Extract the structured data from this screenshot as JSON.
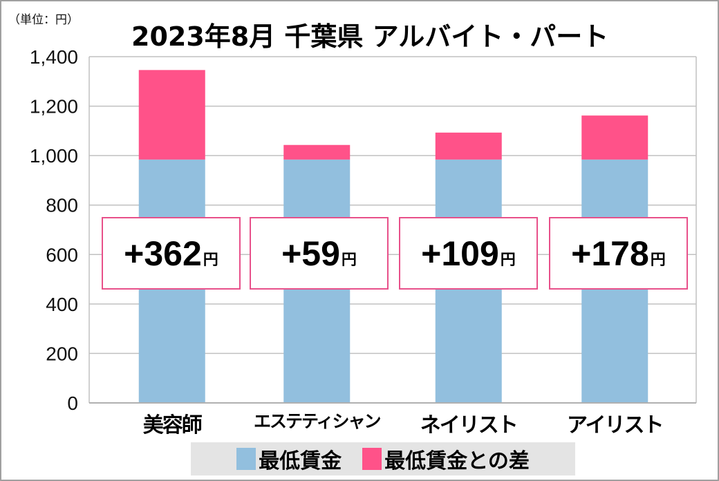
{
  "chart_data": {
    "type": "bar",
    "stacked": true,
    "title": "2023年8月 千葉県 アルバイト・パート",
    "unit_note": "（単位：円）",
    "categories": [
      "美容師",
      "エステティシャン",
      "ネイリスト",
      "アイリスト"
    ],
    "series": [
      {
        "name": "最低賃金",
        "values": [
          984,
          984,
          984,
          984
        ],
        "color": "#92bfde"
      },
      {
        "name": "最低賃金との差",
        "values": [
          362,
          59,
          109,
          178
        ],
        "color": "#ff5289"
      }
    ],
    "annotations": [
      {
        "sign": "+",
        "value": "362",
        "unit": "円"
      },
      {
        "sign": "+",
        "value": "59",
        "unit": "円"
      },
      {
        "sign": "+",
        "value": "109",
        "unit": "円"
      },
      {
        "sign": "+",
        "value": "178",
        "unit": "円"
      }
    ],
    "ylim": [
      0,
      1400
    ],
    "yticks": [
      0,
      200,
      400,
      600,
      800,
      1000,
      1200,
      1400
    ],
    "ytick_labels": [
      "0",
      "200",
      "400",
      "600",
      "800",
      "1,000",
      "1,200",
      "1,400"
    ],
    "grid": true,
    "legend_position": "bottom"
  }
}
